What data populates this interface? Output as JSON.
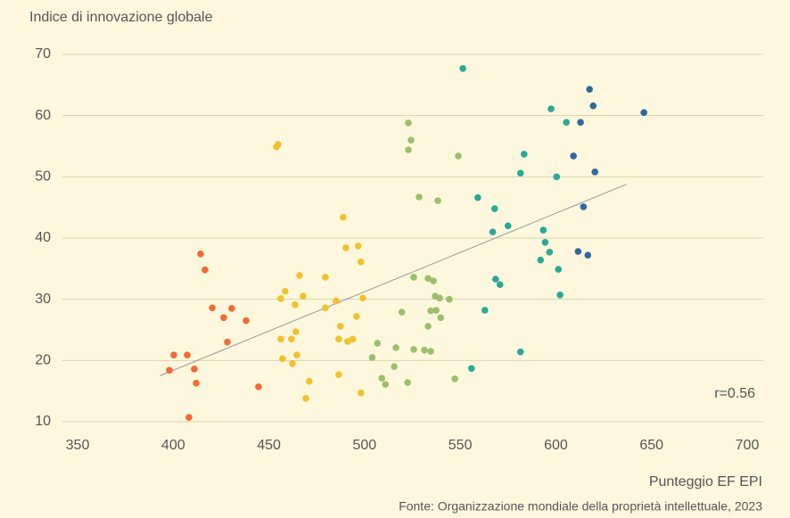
{
  "chart_data": {
    "type": "scatter",
    "title": "Indice di innovazione globale",
    "xlabel": "Punteggio EF EPI",
    "source": "Fonte: Organizzazione mondiale della proprietà intellettuale, 2023",
    "annotation": "r=0.56",
    "xlim": [
      350,
      700
    ],
    "xticks": [
      350,
      400,
      450,
      500,
      550,
      600,
      650,
      700
    ],
    "ylim": [
      10,
      70
    ],
    "yticks": [
      10,
      20,
      30,
      40,
      50,
      60,
      70
    ],
    "grid": true,
    "trendline": {
      "color": "#999999",
      "x": [
        393,
        637
      ],
      "y": [
        17.5,
        48.8
      ]
    },
    "series": [
      {
        "color": "#f26a30",
        "x": [
          398,
          400.3,
          407.3,
          411,
          412,
          408.2,
          414.3,
          416.6,
          420.4,
          426.4,
          430.6,
          428.3,
          438.1,
          444.6
        ],
        "values": [
          18.4,
          20.9,
          20.9,
          18.6,
          16.3,
          10.7,
          37.4,
          34.8,
          28.6,
          27.0,
          28.5,
          23.0,
          26.5,
          15.7
        ]
      },
      {
        "color": "#f2c12e",
        "x": [
          453.9,
          454.8,
          456.2,
          457.1,
          458.5,
          456.2,
          461.8,
          462.3,
          464.1,
          464.6,
          463.7,
          466,
          467.9,
          469.3,
          471.1,
          479.5,
          479.5,
          485.1,
          486.5,
          487.4,
          488.8,
          490.2,
          491.1,
          493.9,
          486.5,
          495.8,
          496.7,
          498.1,
          499.1,
          498.1
        ],
        "values": [
          54.9,
          55.3,
          23.5,
          20.3,
          31.3,
          30.1,
          23.5,
          19.5,
          24.7,
          20.9,
          29.1,
          33.9,
          30.5,
          13.8,
          16.6,
          33.6,
          28.6,
          29.7,
          23.5,
          25.6,
          43.4,
          38.4,
          23.1,
          23.5,
          17.7,
          27.2,
          38.7,
          36.1,
          30.2,
          14.7
        ]
      },
      {
        "color": "#9dbf6c",
        "x": [
          522.9,
          524.3,
          522.9,
          549,
          528.5,
          538.3,
          525.7,
          533.2,
          536,
          536.9,
          539.2,
          544.3,
          519.5,
          534.6,
          537.4,
          539.8,
          533.2,
          525.7,
          531.3,
          534.6,
          506.7,
          516.4,
          504,
          515.5,
          509,
          510.9,
          522.5,
          547.2
        ],
        "values": [
          58.8,
          56.0,
          54.4,
          53.4,
          46.7,
          46.1,
          33.6,
          33.4,
          33.0,
          30.5,
          30.2,
          30.0,
          27.9,
          28.1,
          28.2,
          27.0,
          25.6,
          21.8,
          21.7,
          21.5,
          22.8,
          22.1,
          20.5,
          19.0,
          17.1,
          16.1,
          16.4,
          17.0
        ]
      },
      {
        "color": "#2aa898",
        "x": [
          551.4,
          559.2,
          568,
          575,
          567,
          583.4,
          581.5,
          597.5,
          605.5,
          600.4,
          593.4,
          594.4,
          596.7,
          592,
          601.3,
          568.5,
          570.8,
          602.2,
          562.9,
          581.5,
          555.9
        ],
        "values": [
          67.7,
          46.6,
          44.8,
          42.0,
          41.0,
          53.7,
          50.6,
          61.1,
          58.9,
          50.0,
          41.3,
          39.3,
          37.7,
          36.4,
          34.9,
          33.3,
          32.4,
          30.7,
          28.2,
          21.4,
          18.7
        ]
      },
      {
        "color": "#2e6a99",
        "x": [
          617.6,
          619.5,
          646,
          612.9,
          609.2,
          620.4,
          614.4,
          611.6,
          616.7
        ],
        "values": [
          64.3,
          61.6,
          60.5,
          58.9,
          53.4,
          50.8,
          45.1,
          37.8,
          37.2
        ]
      }
    ]
  }
}
